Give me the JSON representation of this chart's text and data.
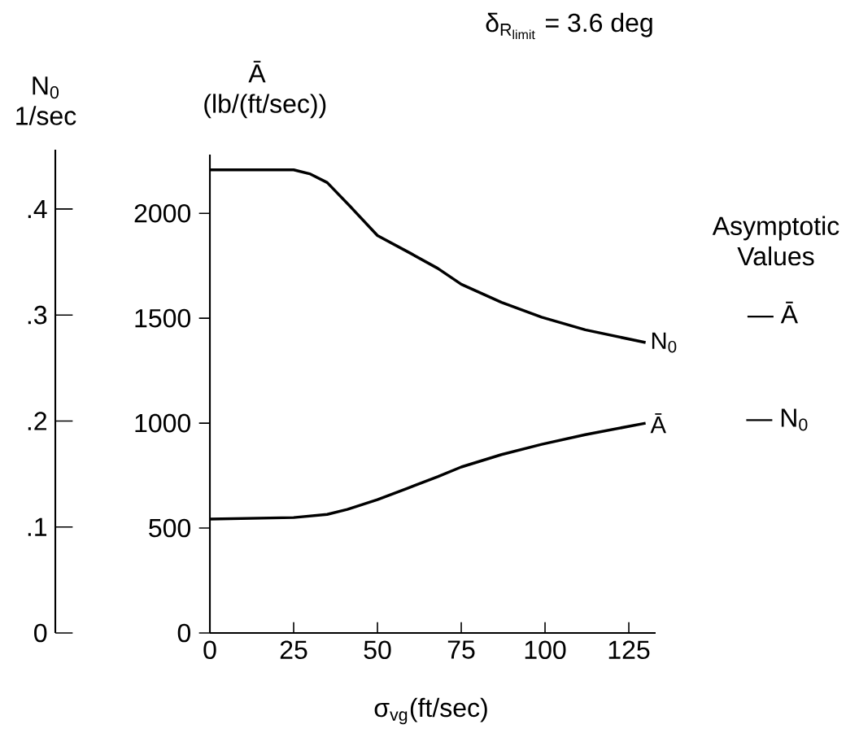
{
  "chart_data": {
    "type": "line",
    "title": "\\text{δ}_{\\text{R}_{\\text{limit}}}\\text{ = 3.6 deg}",
    "xlabel": "σ$_{vg}$(ft/sec)",
    "ylabel": "Ā (lb/(ft/sec))",
    "y2label": "N$_{0}$ 1/sec",
    "annotations": [
      "Asymptotic Values",
      "— Ā",
      "— N$_{0}$"
    ],
    "xlim": [
      0,
      133
    ],
    "xticks": [
      0,
      25,
      50,
      75,
      100,
      125
    ],
    "ylim": [
      0,
      2280
    ],
    "yticks": [
      0,
      500,
      1000,
      1500,
      2000
    ],
    "y2lim": [
      0,
      0.456
    ],
    "y2ticks": [
      0,
      {
        "value": 0.1,
        "label": ".1"
      },
      {
        "value": 0.2,
        "label": ".2"
      },
      {
        "value": 0.3,
        "label": ".3"
      },
      {
        "value": 0.4,
        "label": ".4"
      }
    ],
    "series": [
      {
        "name": "N$_{0}$",
        "color": "#000000",
        "axis": "y2",
        "x": [
          0,
          25,
          30,
          35,
          42,
          50,
          60,
          68,
          75,
          87,
          99,
          112,
          130
        ],
        "values": [
          0.437,
          0.437,
          0.433,
          0.425,
          0.402,
          0.375,
          0.358,
          0.344,
          0.329,
          0.312,
          0.298,
          0.286,
          0.274
        ]
      },
      {
        "name": "Ā",
        "color": "#000000",
        "x": [
          0,
          25,
          35,
          41,
          50,
          59,
          68,
          75,
          87,
          99,
          112,
          130
        ],
        "values": [
          543,
          550,
          565,
          589,
          635,
          690,
          745,
          791,
          850,
          899,
          945,
          1000
        ]
      }
    ]
  }
}
